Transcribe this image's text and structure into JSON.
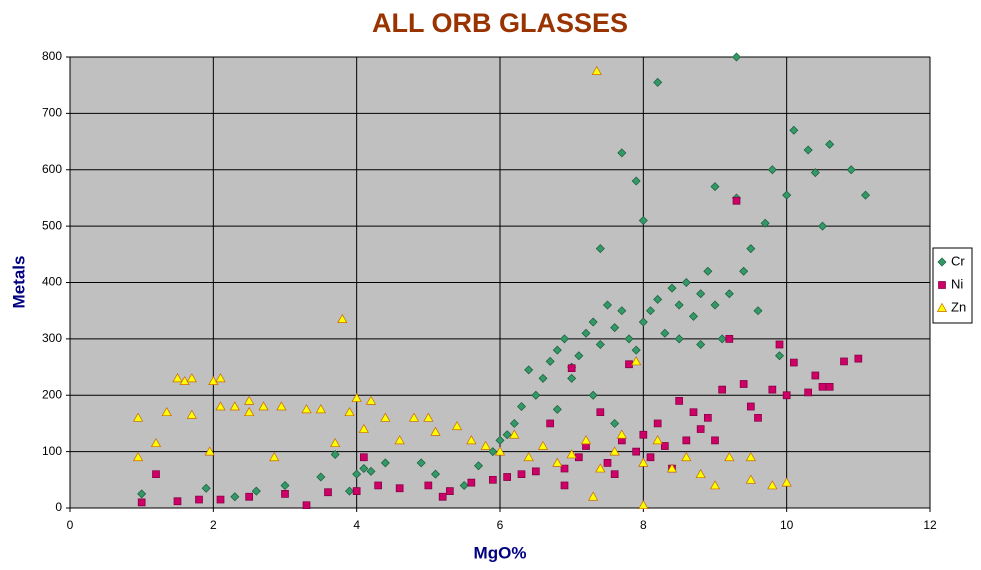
{
  "chart_data": {
    "type": "scatter",
    "title": "ALL ORB GLASSES",
    "x_label": "MgO%",
    "y_label": "Metals",
    "xlim": [
      0,
      12
    ],
    "xticks": [
      0,
      2,
      4,
      6,
      8,
      10,
      12
    ],
    "ylim": [
      0,
      800
    ],
    "yticks": [
      0,
      100,
      200,
      300,
      400,
      500,
      600,
      700,
      800
    ],
    "grid": true,
    "legend": "right",
    "series": [
      {
        "name": "Cr",
        "color": "#339966",
        "marker": "diamond",
        "x": [
          1,
          1.9,
          2.3,
          2.6,
          3,
          3.5,
          3.7,
          3.9,
          4,
          4.1,
          4.2,
          4.4,
          4.9,
          5.1,
          5.5,
          5.7,
          5.9,
          6,
          6.2,
          6.3,
          6.4,
          6.5,
          6.6,
          6.7,
          6.8,
          6.9,
          7,
          7.1,
          7.2,
          7.3,
          7.4,
          7.5,
          7.6,
          7.7,
          7.8,
          7.9,
          8,
          8.1,
          8.2,
          8.3,
          8.4,
          8.5,
          8.6,
          8.7,
          8.8,
          8.9,
          9,
          9.1,
          9.2,
          9.4,
          9.5,
          9.6,
          9.9,
          7.4,
          7.7,
          7.9,
          8,
          8.2,
          9.3,
          9,
          9.3,
          9.8,
          10.1,
          10.3,
          10.4,
          10.6,
          10.9,
          11.1,
          10,
          10.5,
          9.7,
          7,
          7.3,
          6.8,
          6.1,
          7.6,
          8.5,
          8.8
        ],
        "values": [
          25,
          35,
          20,
          30,
          40,
          55,
          95,
          30,
          60,
          70,
          65,
          80,
          80,
          60,
          40,
          75,
          100,
          120,
          150,
          180,
          245,
          200,
          230,
          260,
          280,
          300,
          250,
          270,
          310,
          330,
          290,
          360,
          320,
          350,
          300,
          280,
          330,
          350,
          370,
          310,
          390,
          360,
          400,
          340,
          380,
          420,
          360,
          300,
          380,
          420,
          460,
          350,
          270,
          460,
          630,
          580,
          510,
          755,
          800,
          570,
          550,
          600,
          670,
          635,
          595,
          645,
          600,
          555,
          555,
          500,
          505,
          230,
          200,
          175,
          130,
          150,
          300,
          290
        ]
      },
      {
        "name": "Ni",
        "color": "#cc0066",
        "marker": "square",
        "x": [
          1,
          1.2,
          1.5,
          1.8,
          2.1,
          2.5,
          3,
          3.3,
          3.6,
          4,
          4.1,
          4.3,
          4.6,
          5,
          5.3,
          5.6,
          5.9,
          6.1,
          6.3,
          6.5,
          6.7,
          6.9,
          7,
          7.1,
          7.2,
          7.4,
          7.5,
          7.7,
          7.8,
          7.9,
          8,
          8.1,
          8.2,
          8.3,
          8.5,
          8.6,
          8.7,
          8.8,
          8.9,
          9,
          9.1,
          9.2,
          9.3,
          9.4,
          9.5,
          9.6,
          9.8,
          9.9,
          10,
          10.1,
          10.3,
          10.4,
          10.5,
          10.6,
          10.8,
          11,
          6.9,
          7.6,
          8.4,
          5.2
        ],
        "values": [
          10,
          60,
          12,
          15,
          15,
          20,
          25,
          5,
          28,
          30,
          90,
          40,
          35,
          40,
          30,
          45,
          50,
          55,
          60,
          65,
          150,
          70,
          248,
          90,
          110,
          170,
          80,
          120,
          255,
          100,
          130,
          90,
          150,
          110,
          190,
          120,
          170,
          140,
          160,
          120,
          210,
          300,
          545,
          220,
          180,
          160,
          210,
          290,
          200,
          258,
          205,
          235,
          215,
          215,
          260,
          265,
          40,
          60,
          70,
          20
        ]
      },
      {
        "name": "Zn",
        "color": "#ffff00",
        "marker": "triangle",
        "x": [
          0.95,
          0.95,
          1.2,
          1.35,
          1.5,
          1.6,
          1.7,
          1.7,
          1.95,
          2,
          2.1,
          2.1,
          2.3,
          2.5,
          2.5,
          2.7,
          2.85,
          2.95,
          3.3,
          3.5,
          3.8,
          3.7,
          3.9,
          4,
          4.1,
          4.2,
          4.4,
          4.6,
          4.8,
          5,
          5.1,
          5.4,
          5.6,
          5.8,
          6,
          6.2,
          6.4,
          6.6,
          6.8,
          7,
          7.2,
          7.35,
          7.4,
          7.6,
          7.7,
          7.9,
          8,
          8,
          8.2,
          8.4,
          8.6,
          8.8,
          9,
          9.2,
          9.5,
          9.8,
          10,
          9.5,
          7.3
        ],
        "values": [
          160,
          90,
          115,
          170,
          230,
          225,
          230,
          165,
          100,
          225,
          230,
          180,
          180,
          190,
          170,
          180,
          90,
          180,
          175,
          175,
          335,
          115,
          170,
          195,
          140,
          190,
          160,
          120,
          160,
          160,
          135,
          145,
          120,
          110,
          100,
          130,
          90,
          110,
          80,
          95,
          120,
          775,
          70,
          100,
          130,
          260,
          80,
          5,
          120,
          70,
          90,
          60,
          40,
          90,
          50,
          40,
          45,
          90,
          20
        ]
      }
    ]
  }
}
